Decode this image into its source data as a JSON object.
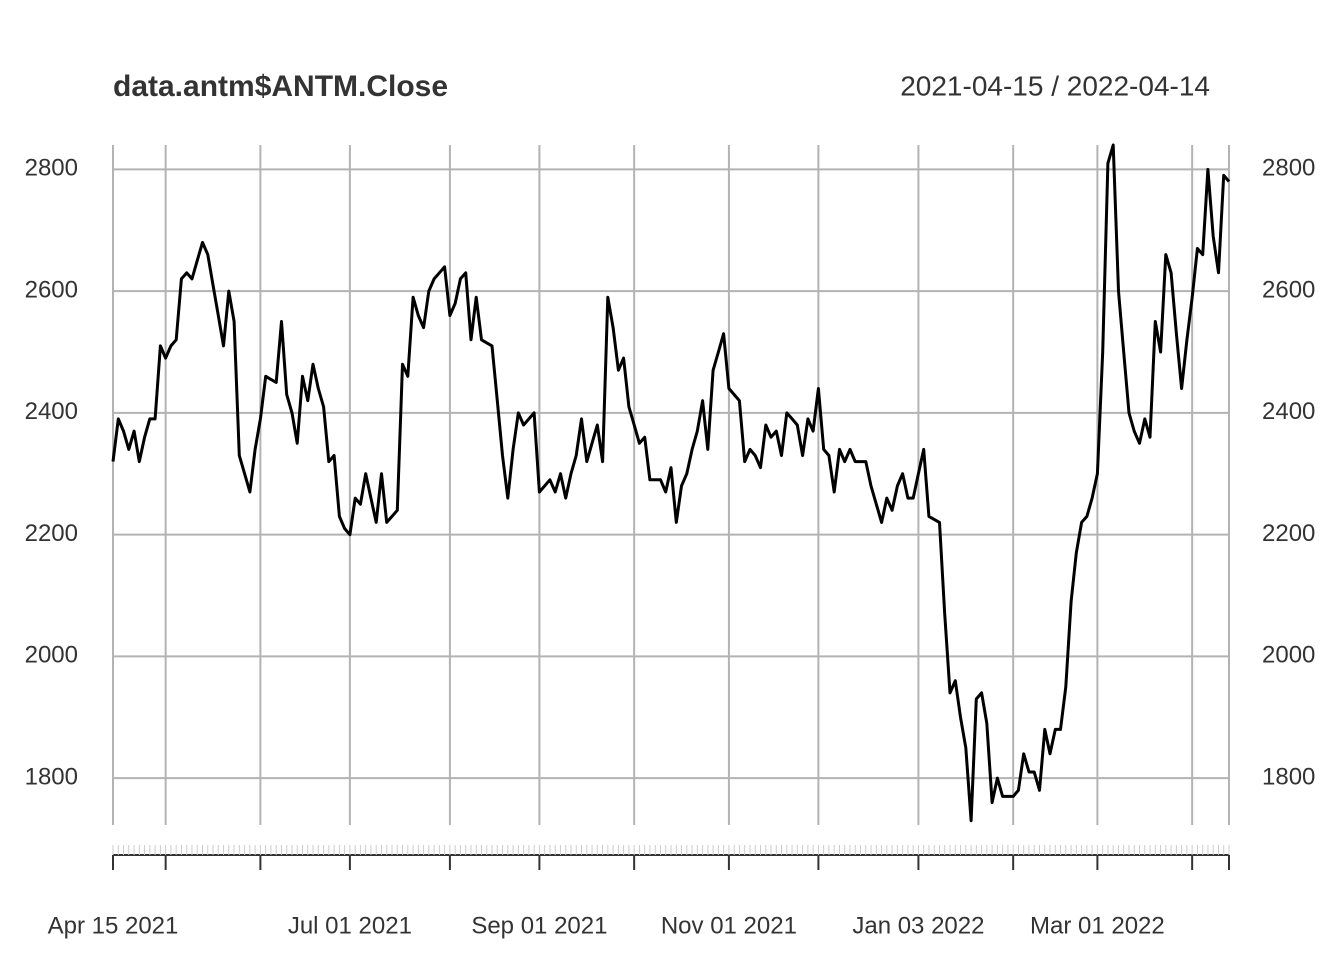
{
  "chart_data": {
    "type": "line",
    "title": "data.antm$ANTM.Close",
    "subtitle": "2021-04-15 / 2022-04-14",
    "color": "#000000",
    "grid": true,
    "ylim": [
      1723,
      2840
    ],
    "yticks": [
      1800,
      2000,
      2200,
      2400,
      2600,
      2800
    ],
    "xlim": [
      0,
      212
    ],
    "xticks": [
      {
        "value": 0,
        "label": "Apr 15 2021"
      },
      {
        "value": 45,
        "label": "Jul 01 2021"
      },
      {
        "value": 81,
        "label": "Sep 01 2021"
      },
      {
        "value": 117,
        "label": "Nov 01 2021"
      },
      {
        "value": 153,
        "label": "Jan 03 2022"
      },
      {
        "value": 187,
        "label": "Mar 01 2022"
      }
    ],
    "minor_xticks": [
      10,
      28,
      64,
      99,
      134,
      171,
      205,
      212
    ],
    "x": [
      0,
      1,
      2,
      3,
      4,
      5,
      6,
      7,
      8,
      9,
      10,
      11,
      12,
      13,
      14,
      15,
      16,
      17,
      18,
      19,
      20,
      21,
      22,
      23,
      24,
      25,
      26,
      27,
      28,
      29,
      30,
      31,
      32,
      33,
      34,
      35,
      36,
      37,
      38,
      39,
      40,
      41,
      42,
      43,
      44,
      45,
      46,
      47,
      48,
      49,
      50,
      51,
      52,
      53,
      54,
      55,
      56,
      57,
      58,
      59,
      60,
      61,
      62,
      63,
      64,
      65,
      66,
      67,
      68,
      69,
      70,
      71,
      72,
      73,
      74,
      75,
      76,
      77,
      78,
      79,
      80,
      81,
      82,
      83,
      84,
      85,
      86,
      87,
      88,
      89,
      90,
      91,
      92,
      93,
      94,
      95,
      96,
      97,
      98,
      99,
      100,
      101,
      102,
      103,
      104,
      105,
      106,
      107,
      108,
      109,
      110,
      111,
      112,
      113,
      114,
      115,
      116,
      117,
      118,
      119,
      120,
      121,
      122,
      123,
      124,
      125,
      126,
      127,
      128,
      129,
      130,
      131,
      132,
      133,
      134,
      135,
      136,
      137,
      138,
      139,
      140,
      141,
      142,
      143,
      144,
      145,
      146,
      147,
      148,
      149,
      150,
      151,
      152,
      153,
      154,
      155,
      156,
      157,
      158,
      159,
      160,
      161,
      162,
      163,
      164,
      165,
      166,
      167,
      168,
      169,
      170,
      171,
      172,
      173,
      174,
      175,
      176,
      177,
      178,
      179,
      180,
      181,
      182,
      183,
      184,
      185,
      186,
      187,
      188,
      189,
      190,
      191,
      192,
      193,
      194,
      195,
      196,
      197,
      198,
      199,
      200,
      201,
      202,
      203,
      204,
      205,
      206,
      207,
      208,
      209,
      210,
      211,
      212
    ],
    "values": [
      2320,
      2390,
      2370,
      2340,
      2370,
      2320,
      2360,
      2390,
      2390,
      2510,
      2490,
      2510,
      2520,
      2620,
      2630,
      2620,
      2650,
      2680,
      2660,
      2610,
      2560,
      2510,
      2600,
      2550,
      2330,
      2300,
      2270,
      2340,
      2390,
      2460,
      2455,
      2450,
      2550,
      2430,
      2400,
      2350,
      2460,
      2420,
      2480,
      2440,
      2410,
      2320,
      2330,
      2230,
      2210,
      2200,
      2260,
      2250,
      2300,
      2260,
      2220,
      2300,
      2220,
      2230,
      2240,
      2480,
      2460,
      2590,
      2560,
      2540,
      2600,
      2620,
      2630,
      2640,
      2560,
      2580,
      2620,
      2630,
      2520,
      2590,
      2520,
      2515,
      2510,
      2420,
      2330,
      2260,
      2340,
      2400,
      2380,
      2390,
      2400,
      2270,
      2280,
      2290,
      2270,
      2300,
      2260,
      2300,
      2330,
      2390,
      2320,
      2350,
      2380,
      2320,
      2590,
      2540,
      2470,
      2490,
      2410,
      2380,
      2350,
      2360,
      2290,
      2290,
      2290,
      2270,
      2310,
      2220,
      2280,
      2300,
      2340,
      2370,
      2420,
      2340,
      2470,
      2500,
      2530,
      2440,
      2430,
      2420,
      2320,
      2340,
      2330,
      2310,
      2380,
      2360,
      2370,
      2330,
      2400,
      2390,
      2380,
      2330,
      2390,
      2370,
      2440,
      2340,
      2330,
      2270,
      2340,
      2320,
      2340,
      2320,
      2320,
      2320,
      2280,
      2250,
      2220,
      2260,
      2240,
      2280,
      2300,
      2260,
      2260,
      2300,
      2340,
      2230,
      2225,
      2220,
      2070,
      1940,
      1960,
      1900,
      1850,
      1730,
      1930,
      1940,
      1890,
      1760,
      1800,
      1770,
      1770,
      1770,
      1780,
      1840,
      1810,
      1810,
      1780,
      1880,
      1840,
      1880,
      1880,
      1950,
      2090,
      2170,
      2220,
      2230,
      2260,
      2300,
      2500,
      2810,
      2840,
      2600,
      2500,
      2400,
      2370,
      2350,
      2390,
      2360,
      2550,
      2500,
      2660,
      2630,
      2530,
      2440,
      2520,
      2590,
      2670,
      2660,
      2800,
      2690,
      2630,
      2790,
      2780
    ]
  }
}
